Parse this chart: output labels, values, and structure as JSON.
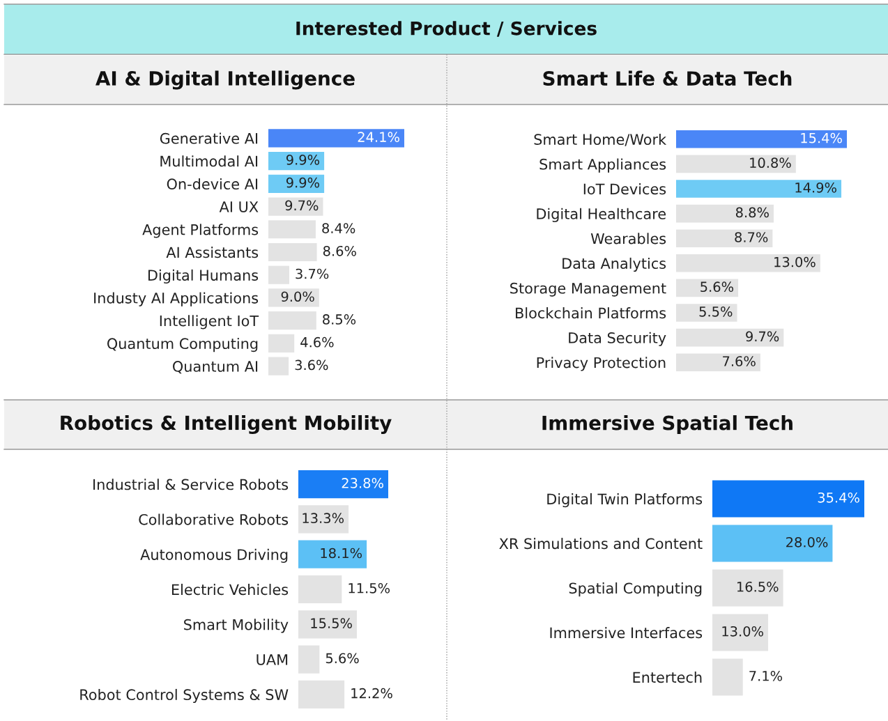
{
  "chart_data": [
    {
      "type": "other",
      "title": "Interested Product / Services"
    },
    {
      "type": "bar",
      "orientation": "horizontal",
      "title": "AI & Digital Intelligence",
      "categories": [
        "Generative AI",
        "Multimodal AI",
        "On-device AI",
        "AI UX",
        "Agent Platforms",
        "AI Assistants",
        "Digital Humans",
        "Industy AI Applications",
        "Intelligent IoT",
        "Quantum Computing",
        "Quantum AI"
      ],
      "values": [
        24.1,
        9.9,
        9.9,
        9.7,
        8.4,
        8.6,
        3.7,
        9.0,
        8.5,
        4.6,
        3.6
      ],
      "value_labels": [
        "24.1%",
        "9.9%",
        "9.9%",
        "9.7%",
        "8.4%",
        "8.6%",
        "3.7%",
        "9.0%",
        "8.5%",
        "4.6%",
        "3.6%"
      ],
      "colors": [
        "#4a86f7",
        "#6ecbf5",
        "#6ecbf5",
        "#e3e3e3",
        "#e3e3e3",
        "#e3e3e3",
        "#e3e3e3",
        "#e3e3e3",
        "#e3e3e3",
        "#e3e3e3",
        "#e3e3e3"
      ]
    },
    {
      "type": "bar",
      "orientation": "horizontal",
      "title": "Smart Life & Data Tech",
      "categories": [
        "Smart Home/Work",
        "Smart Appliances",
        "IoT Devices",
        "Digital Healthcare",
        "Wearables",
        "Data Analytics",
        "Storage Management",
        "Blockchain Platforms",
        "Data Security",
        "Privacy Protection"
      ],
      "values": [
        15.4,
        10.8,
        14.9,
        8.8,
        8.7,
        13.0,
        5.6,
        5.5,
        9.7,
        7.6
      ],
      "value_labels": [
        "15.4%",
        "10.8%",
        "14.9%",
        "8.8%",
        "8.7%",
        "13.0%",
        "5.6%",
        "5.5%",
        "9.7%",
        "7.6%"
      ],
      "colors": [
        "#4a86f7",
        "#e3e3e3",
        "#6ecbf5",
        "#e3e3e3",
        "#e3e3e3",
        "#e3e3e3",
        "#e3e3e3",
        "#e3e3e3",
        "#e3e3e3",
        "#e3e3e3"
      ]
    },
    {
      "type": "bar",
      "orientation": "horizontal",
      "title": "Robotics & Intelligent Mobility",
      "categories": [
        "Industrial & Service Robots",
        "Collaborative Robots",
        "Autonomous Driving",
        "Electric Vehicles",
        "Smart Mobility",
        "UAM",
        "Robot Control Systems & SW"
      ],
      "values": [
        23.8,
        13.3,
        18.1,
        11.5,
        15.5,
        5.6,
        12.2
      ],
      "value_labels": [
        "23.8%",
        "13.3%",
        "18.1%",
        "11.5%",
        "15.5%",
        "5.6%",
        "12.2%"
      ],
      "colors": [
        "#1a7ef5",
        "#e3e3e3",
        "#5cc0f5",
        "#e3e3e3",
        "#e3e3e3",
        "#e3e3e3",
        "#e3e3e3"
      ]
    },
    {
      "type": "bar",
      "orientation": "horizontal",
      "title": "Immersive Spatial Tech",
      "categories": [
        "Digital Twin Platforms",
        "XR Simulations and Content",
        "Spatial Computing",
        "Immersive Interfaces",
        "Entertech"
      ],
      "values": [
        35.4,
        28.0,
        16.5,
        13.0,
        7.1
      ],
      "value_labels": [
        "35.4%",
        "28.0%",
        "16.5%",
        "13.0%",
        "7.1%"
      ],
      "colors": [
        "#0f78f5",
        "#5cc0f5",
        "#e3e3e3",
        "#e3e3e3",
        "#e3e3e3"
      ]
    }
  ]
}
